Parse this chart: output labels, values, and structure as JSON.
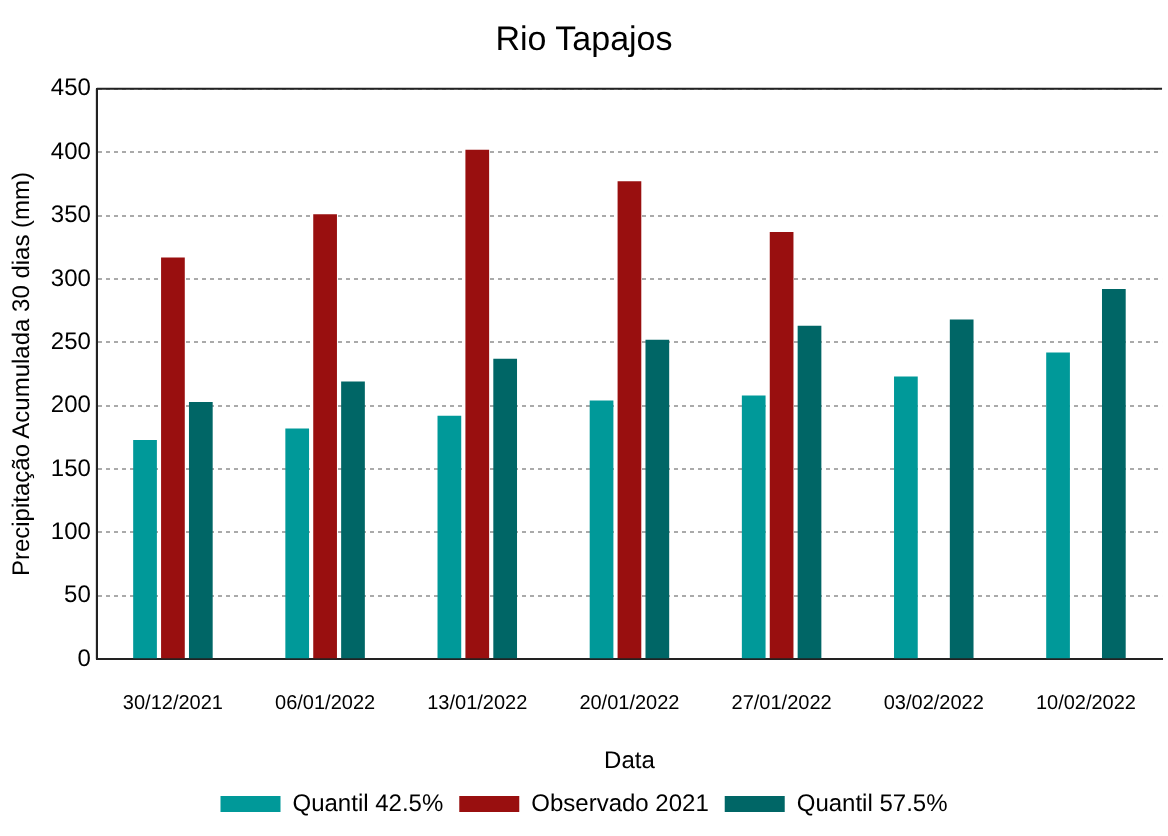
{
  "chart_data": {
    "type": "bar",
    "title": "Rio Tapajos",
    "xlabel": "Data",
    "ylabel": "Precipitação Acumulada 30 dias (mm)",
    "categories": [
      "30/12/2021",
      "06/01/2022",
      "13/01/2022",
      "20/01/2022",
      "27/01/2022",
      "03/02/2022",
      "10/02/2022"
    ],
    "series": [
      {
        "name": "Quantil 42.5%",
        "color": "#009999",
        "values": [
          173,
          182,
          192,
          204,
          208,
          223,
          242
        ]
      },
      {
        "name": "Observado 2021",
        "color": "#990f0f",
        "values": [
          317,
          351,
          402,
          377,
          337,
          null,
          null
        ]
      },
      {
        "name": "Quantil 57.5%",
        "color": "#006666",
        "values": [
          203,
          219,
          237,
          252,
          263,
          268,
          292
        ]
      }
    ],
    "ylim": [
      0,
      450
    ],
    "yticks": [
      0,
      50,
      100,
      150,
      200,
      250,
      300,
      350,
      400,
      450
    ],
    "grid": "y",
    "legend": "bottom"
  }
}
